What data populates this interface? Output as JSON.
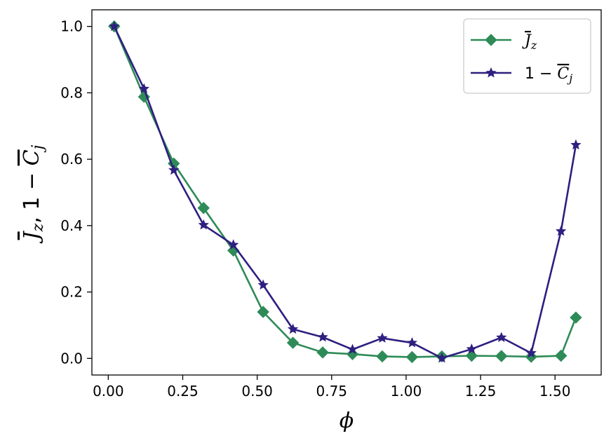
{
  "chart_data": {
    "type": "line",
    "xlabel": "ϕ",
    "ylabel": {
      "parts": [
        "J",
        "z",
        ",  1 − ",
        "C",
        "j"
      ]
    },
    "xlim": [
      -0.055,
      1.655
    ],
    "ylim": [
      -0.05,
      1.05
    ],
    "xticks": [
      0.0,
      0.25,
      0.5,
      0.75,
      1.0,
      1.25,
      1.5
    ],
    "xtick_labels": [
      "0.00",
      "0.25",
      "0.50",
      "0.75",
      "1.00",
      "1.25",
      "1.50"
    ],
    "yticks": [
      0.0,
      0.2,
      0.4,
      0.6,
      0.8,
      1.0
    ],
    "ytick_labels": [
      "0.0",
      "0.2",
      "0.4",
      "0.6",
      "0.8",
      "1.0"
    ],
    "grid": false,
    "legend_position": "upper right",
    "x": [
      0.02,
      0.12,
      0.22,
      0.32,
      0.42,
      0.52,
      0.62,
      0.72,
      0.82,
      0.92,
      1.02,
      1.12,
      1.22,
      1.32,
      1.42,
      1.52,
      1.57
    ],
    "series": [
      {
        "name": "J_z",
        "legend_label": {
          "main": "J",
          "sub": "z"
        },
        "color": "#2e8b57",
        "marker": "diamond",
        "values": [
          1.0,
          0.788,
          0.587,
          0.453,
          0.325,
          0.14,
          0.047,
          0.018,
          0.013,
          0.006,
          0.004,
          0.006,
          0.008,
          0.007,
          0.005,
          0.008,
          0.123
        ]
      },
      {
        "name": "1 − C_j",
        "legend_label": {
          "prefix": "1 − ",
          "main": "C",
          "sub": "j"
        },
        "color": "#2e1f80",
        "marker": "star",
        "values": [
          1.0,
          0.812,
          0.567,
          0.402,
          0.342,
          0.221,
          0.088,
          0.064,
          0.027,
          0.061,
          0.047,
          0.001,
          0.028,
          0.063,
          0.016,
          0.383,
          0.643
        ]
      }
    ]
  }
}
